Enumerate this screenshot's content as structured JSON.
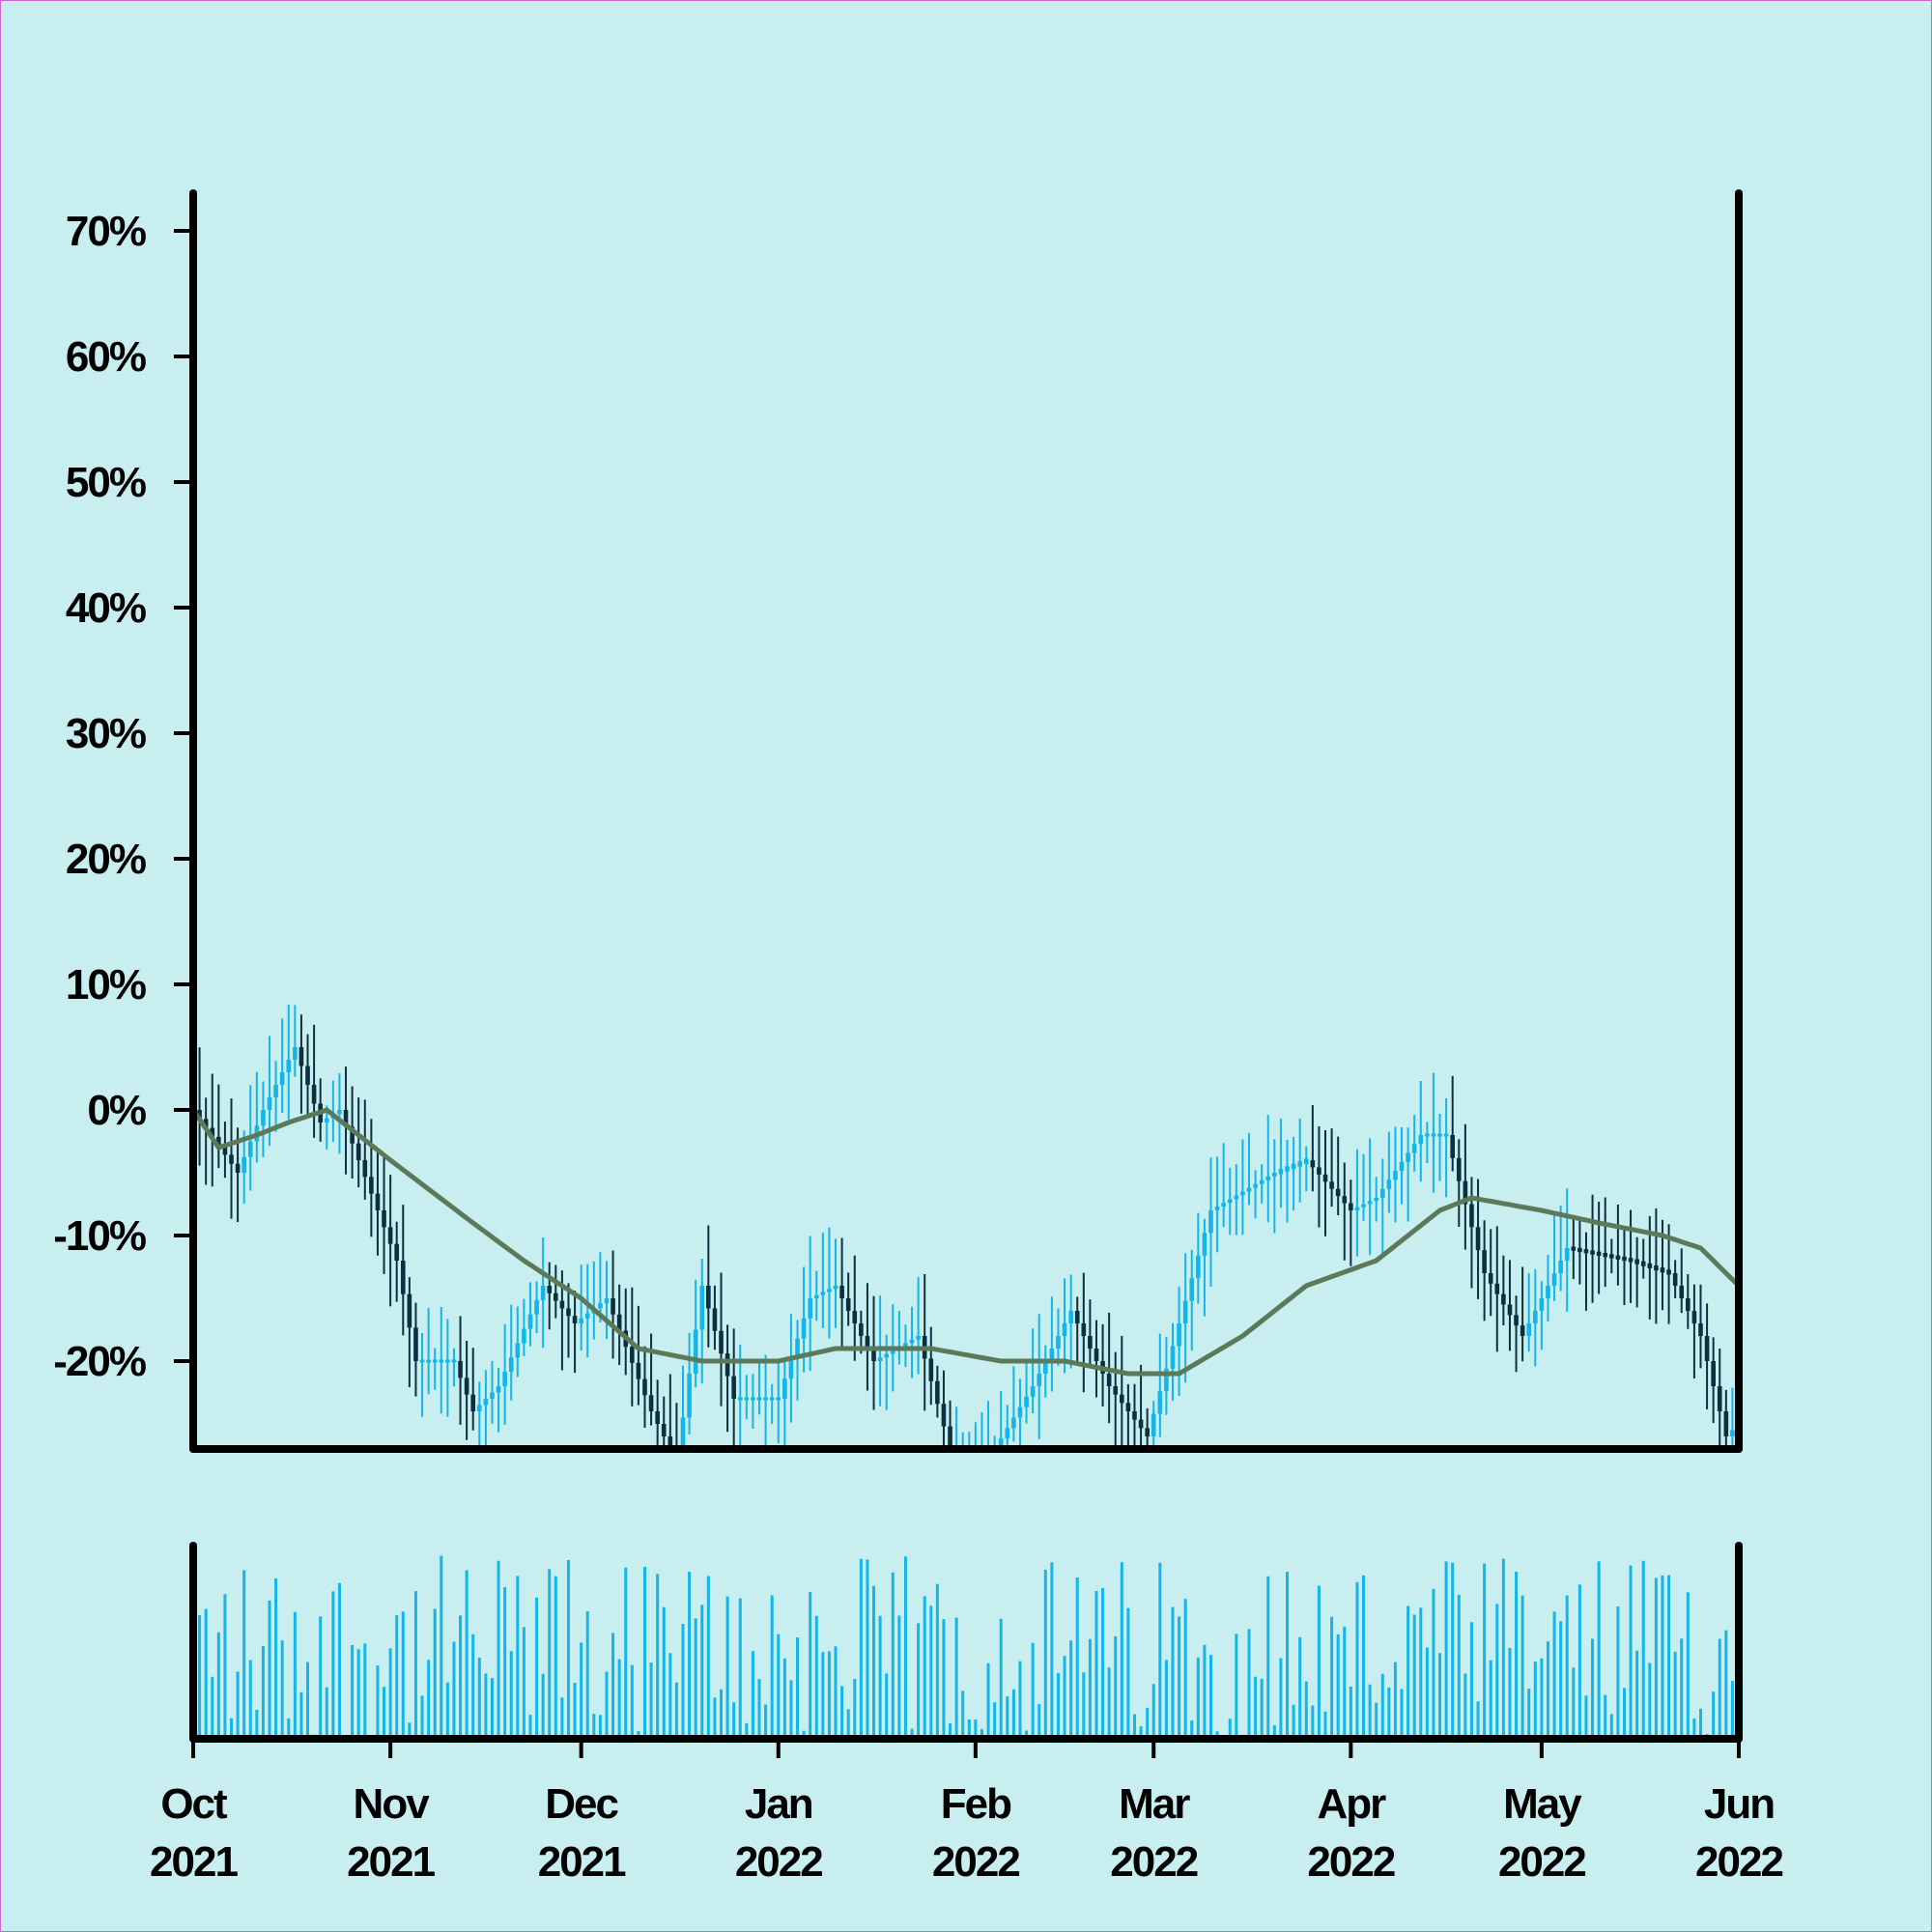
{
  "chart_data": {
    "type": "candlestick",
    "price_panel": {
      "y_ticks": [
        {
          "value": 70,
          "label": "70%"
        },
        {
          "value": 60,
          "label": "60%"
        },
        {
          "value": 50,
          "label": "50%"
        },
        {
          "value": 40,
          "label": "40%"
        },
        {
          "value": 30,
          "label": "30%"
        },
        {
          "value": 20,
          "label": "20%"
        },
        {
          "value": 10,
          "label": "10%"
        },
        {
          "value": 0,
          "label": "0%"
        },
        {
          "value": -10,
          "label": "-10%"
        },
        {
          "value": -20,
          "label": "-20%"
        }
      ],
      "ylim": [
        -27,
        73
      ],
      "grid": false
    },
    "x_ticks": [
      {
        "date": "2021-10-01",
        "line1": "Oct",
        "line2": "2021"
      },
      {
        "date": "2021-11-01",
        "line1": "Nov",
        "line2": "2021"
      },
      {
        "date": "2021-12-01",
        "line1": "Dec",
        "line2": "2021"
      },
      {
        "date": "2022-01-01",
        "line1": "Jan",
        "line2": "2022"
      },
      {
        "date": "2022-02-01",
        "line1": "Feb",
        "line2": "2022"
      },
      {
        "date": "2022-03-01",
        "line1": "Mar",
        "line2": "2022"
      },
      {
        "date": "2022-04-01",
        "line1": "Apr",
        "line2": "2022"
      },
      {
        "date": "2022-05-01",
        "line1": "May",
        "line2": "2022"
      },
      {
        "date": "2022-06-01",
        "line1": "Jun",
        "line2": "2022"
      }
    ],
    "xlim": [
      "2021-10-01",
      "2022-06-01"
    ],
    "close_path": [
      [
        "2021-10-01",
        0
      ],
      [
        "2021-10-08",
        -5
      ],
      [
        "2021-10-12",
        0
      ],
      [
        "2021-10-17",
        5
      ],
      [
        "2021-10-21",
        -1
      ],
      [
        "2021-10-24",
        0
      ],
      [
        "2021-11-02",
        -12
      ],
      [
        "2021-11-05",
        -20
      ],
      [
        "2021-11-11",
        -20
      ],
      [
        "2021-11-14",
        -24
      ],
      [
        "2021-11-18",
        -22
      ],
      [
        "2021-11-25",
        -14
      ],
      [
        "2021-11-30",
        -17
      ],
      [
        "2021-12-05",
        -15
      ],
      [
        "2021-12-12",
        -24
      ],
      [
        "2021-12-16",
        -28
      ],
      [
        "2021-12-20",
        -14
      ],
      [
        "2021-12-25",
        -23
      ],
      [
        "2022-01-01",
        -23
      ],
      [
        "2022-01-06",
        -15
      ],
      [
        "2022-01-10",
        -14
      ],
      [
        "2022-01-16",
        -20
      ],
      [
        "2022-01-23",
        -18
      ],
      [
        "2022-01-28",
        -27
      ],
      [
        "2022-02-04",
        -27
      ],
      [
        "2022-02-10",
        -22
      ],
      [
        "2022-02-16",
        -16
      ],
      [
        "2022-02-22",
        -22
      ],
      [
        "2022-02-28",
        -26
      ],
      [
        "2022-03-05",
        -17
      ],
      [
        "2022-03-10",
        -8
      ],
      [
        "2022-03-20",
        -5
      ],
      [
        "2022-03-25",
        -4
      ],
      [
        "2022-04-01",
        -8
      ],
      [
        "2022-04-05",
        -7
      ],
      [
        "2022-04-12",
        -2
      ],
      [
        "2022-04-16",
        -2
      ],
      [
        "2022-04-22",
        -13
      ],
      [
        "2022-04-28",
        -18
      ],
      [
        "2022-05-05",
        -11
      ],
      [
        "2022-05-15",
        -12
      ],
      [
        "2022-05-21",
        -13
      ],
      [
        "2022-05-26",
        -18
      ],
      [
        "2022-05-30",
        -26
      ],
      [
        "2022-06-01",
        -25
      ]
    ],
    "moving_average": [
      [
        "2021-10-01",
        0
      ],
      [
        "2021-10-05",
        -3
      ],
      [
        "2021-10-11",
        -2
      ],
      [
        "2021-10-16",
        -1
      ],
      [
        "2021-10-22",
        0
      ],
      [
        "2021-11-01",
        -4
      ],
      [
        "2021-11-14",
        -9
      ],
      [
        "2021-11-22",
        -12
      ],
      [
        "2021-12-01",
        -15
      ],
      [
        "2021-12-10",
        -19
      ],
      [
        "2021-12-20",
        -20
      ],
      [
        "2022-01-01",
        -20
      ],
      [
        "2022-01-10",
        -19
      ],
      [
        "2022-01-25",
        -19
      ],
      [
        "2022-02-05",
        -20
      ],
      [
        "2022-02-15",
        -20
      ],
      [
        "2022-02-25",
        -21
      ],
      [
        "2022-03-05",
        -21
      ],
      [
        "2022-03-15",
        -18
      ],
      [
        "2022-03-25",
        -14
      ],
      [
        "2022-04-05",
        -12
      ],
      [
        "2022-04-15",
        -8
      ],
      [
        "2022-04-20",
        -7
      ],
      [
        "2022-05-01",
        -8
      ],
      [
        "2022-05-10",
        -9
      ],
      [
        "2022-05-20",
        -10
      ],
      [
        "2022-05-26",
        -11
      ],
      [
        "2022-06-01",
        -14
      ]
    ],
    "volume_panel": {
      "volume_range": [
        0,
        100
      ]
    },
    "colors": {
      "background": "#c9eeef",
      "up_candle": "#14b5e8",
      "down_candle": "#0d3040",
      "moving_average": "#5c7a5a",
      "volume": "#14b5e8",
      "axis": "#000000",
      "frame": "#cc66cc"
    }
  }
}
